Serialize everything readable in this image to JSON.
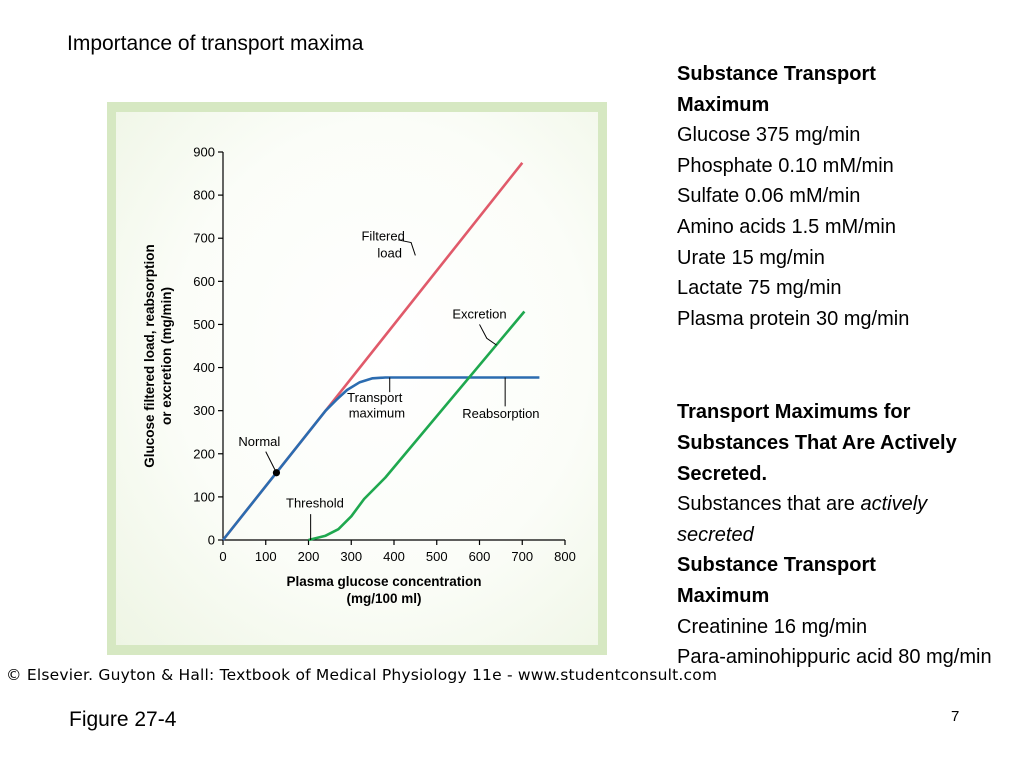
{
  "slide": {
    "title": "Importance of transport maxima",
    "figure_label": "Figure 27-4",
    "page_number": "7",
    "copyright": "© Elsevier. Guyton & Hall: Textbook of Medical Physiology 11e - www.studentconsult.com"
  },
  "right_panel": {
    "heading1": "Substance Transport Maximum",
    "list1": [
      "Glucose 375 mg/min",
      "Phosphate 0.10 mM/min",
      "Sulfate 0.06 mM/min",
      "Amino acids 1.5 mM/min",
      "Urate 15 mg/min",
      "Lactate 75 mg/min",
      "Plasma protein 30 mg/min"
    ],
    "heading2": "Transport Maximums for Substances That Are Actively Secreted.",
    "secreted_prefix": "Substances that are ",
    "secreted_italic": "actively secreted",
    "heading3": "Substance Transport Maximum",
    "list2": [
      "Creatinine 16 mg/min",
      "Para-aminohippuric acid 80 mg/min"
    ]
  },
  "chart_data": {
    "type": "line",
    "xlabel": "Plasma glucose concentration (mg/100 ml)",
    "xlabel_lines": [
      "Plasma glucose concentration",
      "(mg/100 ml)"
    ],
    "ylabel": "Glucose filtered load, reabsorption or excretion (mg/min)",
    "ylabel_lines": [
      "Glucose filtered load, reabsorption",
      "or excretion (mg/min)"
    ],
    "xlim": [
      0,
      800
    ],
    "ylim": [
      0,
      900
    ],
    "xticks": [
      0,
      100,
      200,
      300,
      400,
      500,
      600,
      700,
      800
    ],
    "yticks": [
      0,
      100,
      200,
      300,
      400,
      500,
      600,
      700,
      800,
      900
    ],
    "grid": false,
    "series": [
      {
        "key": "filtered",
        "color": "#e05a6a",
        "points": [
          [
            0,
            0
          ],
          [
            700,
            875
          ]
        ]
      },
      {
        "key": "reabsorption",
        "color": "#2b6cb0",
        "points": [
          [
            0,
            0
          ],
          [
            240,
            300
          ],
          [
            265,
            325
          ],
          [
            290,
            348
          ],
          [
            320,
            366
          ],
          [
            350,
            375
          ],
          [
            380,
            377
          ],
          [
            740,
            377
          ]
        ]
      },
      {
        "key": "excretion",
        "color": "#1fa84f",
        "points": [
          [
            200,
            0
          ],
          [
            240,
            10
          ],
          [
            270,
            25
          ],
          [
            300,
            55
          ],
          [
            330,
            95
          ],
          [
            380,
            145
          ],
          [
            705,
            530
          ]
        ]
      }
    ],
    "annotations": [
      {
        "key": "filtered",
        "lines": [
          "Filtered",
          "load"
        ]
      },
      {
        "key": "excretion",
        "lines": [
          "Excretion"
        ]
      },
      {
        "key": "transport",
        "lines": [
          "Transport",
          "maximum"
        ]
      },
      {
        "key": "reabsorption",
        "lines": [
          "Reabsorption"
        ]
      },
      {
        "key": "normal",
        "lines": [
          "Normal"
        ],
        "point": [
          125,
          156
        ]
      },
      {
        "key": "threshold",
        "lines": [
          "Threshold"
        ]
      }
    ]
  }
}
